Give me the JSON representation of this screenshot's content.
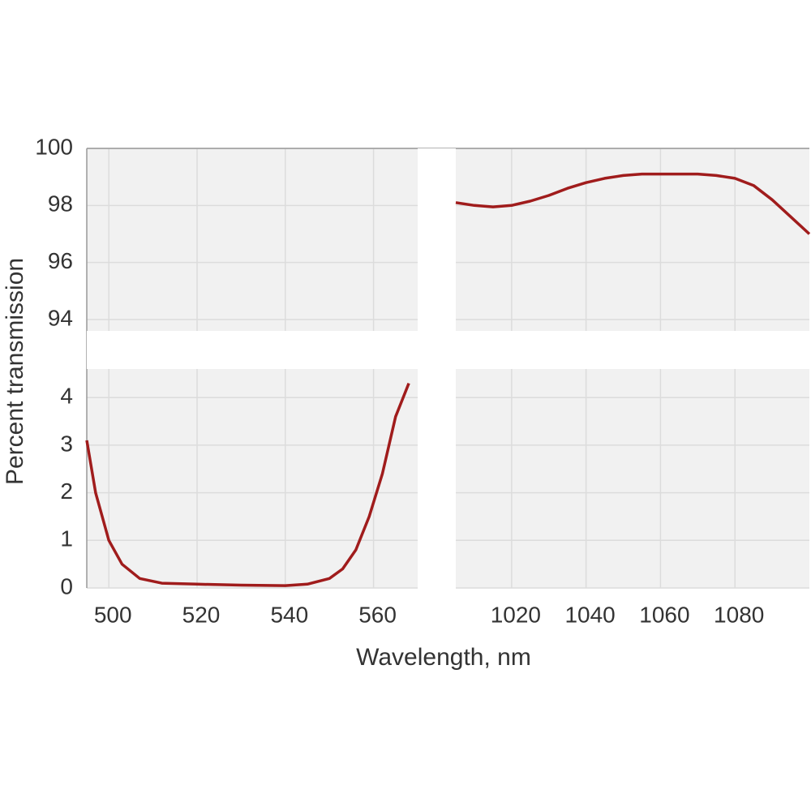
{
  "chart_data": {
    "type": "line",
    "xlabel": "Wavelength, nm",
    "ylabel": "Percent  transmission",
    "color": "#a01c1c",
    "grid": true,
    "x_axes": [
      {
        "xlim": [
          495,
          570
        ],
        "xticks": [
          500,
          520,
          540,
          560
        ]
      },
      {
        "xlim": [
          1005,
          1100
        ],
        "xticks": [
          1020,
          1040,
          1060,
          1080
        ]
      }
    ],
    "y_axes": [
      {
        "ylim": [
          0,
          4.6
        ],
        "yticks": [
          0,
          1,
          2,
          3,
          4
        ]
      },
      {
        "ylim": [
          93.6,
          100
        ],
        "yticks": [
          94,
          96,
          98,
          100
        ]
      }
    ],
    "series": [
      {
        "x": [
          495,
          497,
          500,
          503,
          507,
          512,
          520,
          530,
          540,
          545,
          550,
          553,
          556,
          559,
          562,
          565,
          568
        ],
        "values": [
          3.1,
          2.0,
          1.0,
          0.5,
          0.2,
          0.1,
          0.08,
          0.06,
          0.05,
          0.08,
          0.2,
          0.4,
          0.8,
          1.5,
          2.4,
          3.6,
          4.3
        ]
      },
      {
        "x": [
          1005,
          1010,
          1015,
          1020,
          1025,
          1030,
          1035,
          1040,
          1045,
          1050,
          1055,
          1060,
          1065,
          1070,
          1075,
          1080,
          1085,
          1090,
          1095,
          1100
        ],
        "values": [
          98.1,
          98.0,
          97.95,
          98.0,
          98.15,
          98.35,
          98.6,
          98.8,
          98.95,
          99.05,
          99.1,
          99.1,
          99.1,
          99.1,
          99.05,
          98.95,
          98.7,
          98.2,
          97.6,
          97.0
        ]
      }
    ]
  }
}
